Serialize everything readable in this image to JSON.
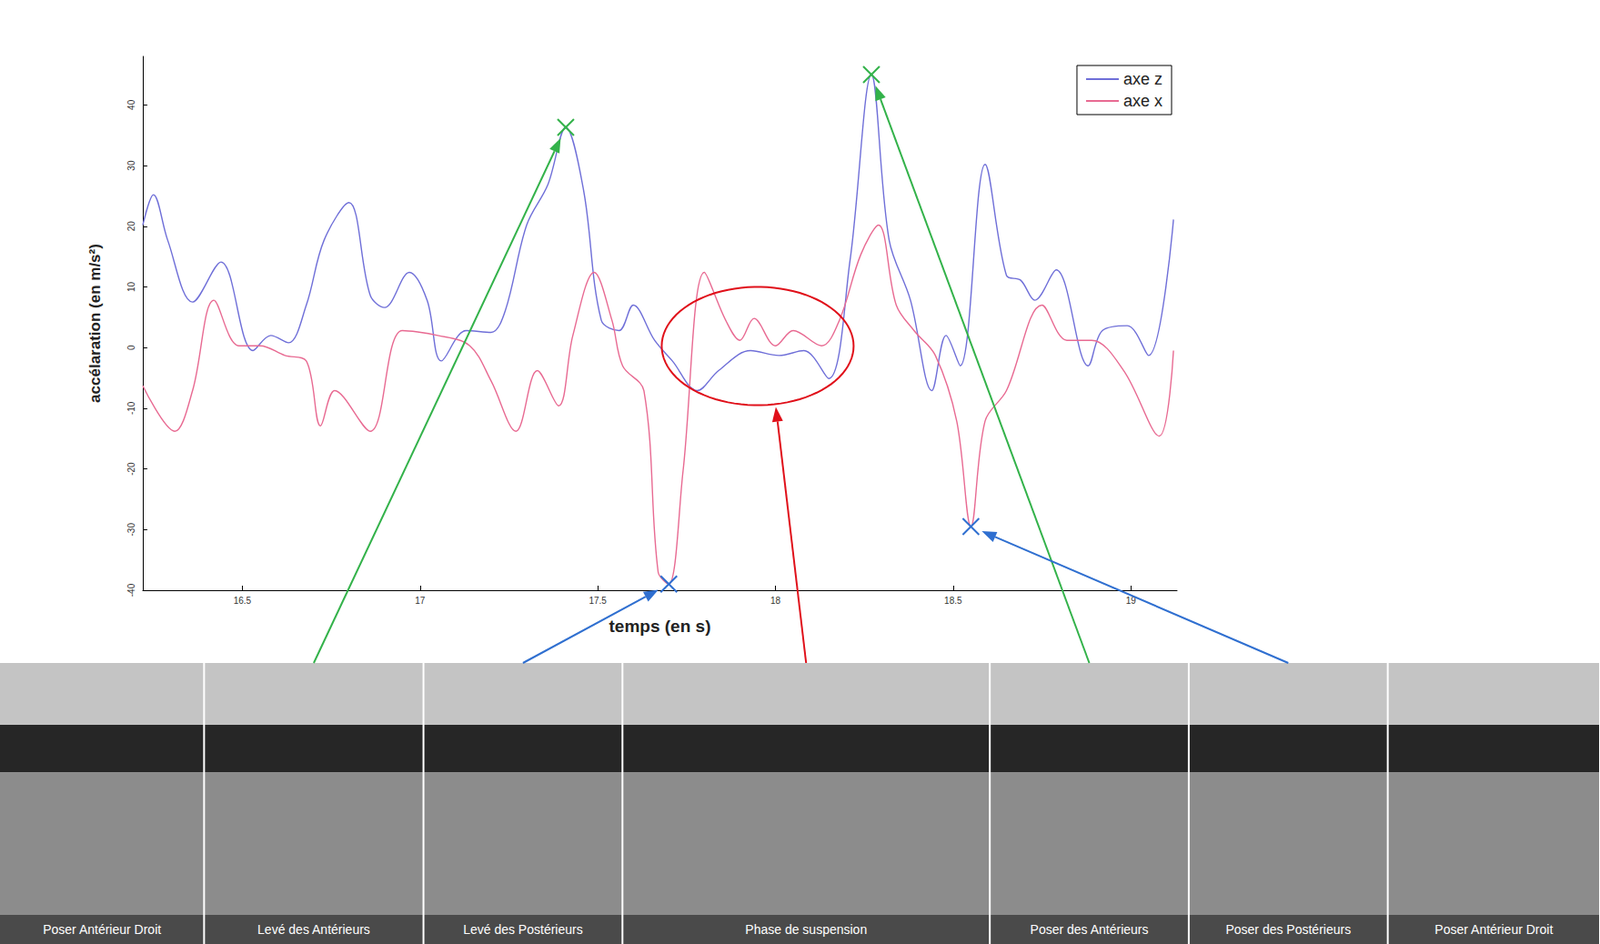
{
  "chart_data": {
    "type": "line",
    "xlabel": "temps (en s)",
    "ylabel": "accélaration (en m/s²)",
    "xlim": [
      16.22,
      19.13
    ],
    "xticks": [
      16.5,
      17,
      17.5,
      18,
      18.5,
      19
    ],
    "ylim": [
      -40,
      48
    ],
    "yticks": [
      -40,
      -30,
      -20,
      -10,
      0,
      10,
      20,
      30,
      40
    ],
    "grid": false,
    "legend": "upper right",
    "series": [
      {
        "name": "axe z",
        "color": "#6f6fd8",
        "x": [
          16.22,
          16.25,
          16.29,
          16.36,
          16.44,
          16.53,
          16.58,
          16.63,
          16.68,
          16.73,
          16.8,
          16.86,
          16.9,
          16.97,
          17.02,
          17.06,
          17.13,
          17.2,
          17.24,
          17.3,
          17.36,
          17.41,
          17.46,
          17.51,
          17.56,
          17.6,
          17.66,
          17.71,
          17.78,
          17.84,
          17.93,
          18.01,
          18.08,
          18.15,
          18.21,
          18.27,
          18.32,
          18.38,
          18.44,
          18.48,
          18.52,
          18.59,
          18.65,
          18.69,
          18.73,
          18.79,
          18.88,
          18.92,
          18.99,
          19.05,
          19.12
        ],
        "values": [
          20.2,
          25.2,
          17.7,
          7.5,
          14.1,
          -0.5,
          2.0,
          0.8,
          7.0,
          17.7,
          23.9,
          8.6,
          6.6,
          12.4,
          7.8,
          -2.2,
          2.8,
          2.5,
          6.1,
          20.2,
          26.9,
          36.3,
          26.0,
          4.5,
          2.8,
          7.0,
          1.2,
          -2.2,
          -7.1,
          -3.8,
          -0.5,
          -1.3,
          -0.5,
          -5.1,
          14.4,
          45.0,
          17.7,
          7.8,
          -7.1,
          2.0,
          -3.0,
          30.2,
          11.9,
          11.1,
          7.8,
          12.8,
          -3.0,
          2.8,
          3.6,
          -1.3,
          21.1
        ]
      },
      {
        "name": "axe x",
        "color": "#e86a92",
        "x": [
          16.22,
          16.31,
          16.36,
          16.42,
          16.49,
          16.55,
          16.62,
          16.68,
          16.72,
          16.76,
          16.86,
          16.95,
          17.05,
          17.14,
          17.2,
          17.27,
          17.33,
          17.39,
          17.43,
          17.49,
          17.54,
          17.57,
          17.63,
          17.67,
          17.7,
          17.74,
          17.8,
          17.86,
          17.9,
          17.94,
          18.0,
          18.05,
          18.13,
          18.18,
          18.24,
          18.29,
          18.34,
          18.39,
          18.45,
          18.51,
          18.55,
          18.59,
          18.65,
          18.75,
          18.82,
          18.89,
          18.98,
          19.08,
          19.12
        ],
        "values": [
          -6.3,
          -13.8,
          -7.1,
          7.8,
          0.3,
          0.3,
          -1.3,
          -2.2,
          -12.9,
          -7.1,
          -13.8,
          2.8,
          2.0,
          0.3,
          -5.5,
          -13.8,
          -3.8,
          -9.6,
          2.0,
          12.4,
          4.5,
          -3.0,
          -7.1,
          -37.0,
          -39.0,
          -20.4,
          12.4,
          4.5,
          1.2,
          4.8,
          0.3,
          2.8,
          0.3,
          4.5,
          15.3,
          20.2,
          7.0,
          2.8,
          -1.3,
          -12.1,
          -29.5,
          -12.1,
          -7.1,
          7.0,
          1.2,
          1.2,
          -3.8,
          -14.6,
          -0.5
        ]
      }
    ],
    "annotations": [
      {
        "x": 17.41,
        "y": 36.3,
        "color": "#33b24a",
        "marker": "x",
        "label": "Levé des Antérieurs"
      },
      {
        "x": 17.7,
        "y": -39.0,
        "color": "#2f6fd0",
        "marker": "x",
        "label": "Levé des Postérieurs"
      },
      {
        "x": 18.27,
        "y": 45.0,
        "color": "#33b24a",
        "marker": "x",
        "label": "Poser des Antérieurs"
      },
      {
        "x": 18.55,
        "y": -29.5,
        "color": "#2f6fd0",
        "marker": "x",
        "label": "Poser des Postérieurs"
      }
    ],
    "highlight": {
      "x": [
        17.68,
        18.22
      ],
      "y": [
        -9.5,
        10.0
      ],
      "color": "#e0101a",
      "label": "Phase de suspension"
    },
    "photos": [
      "Poser Antérieur Droit",
      "Levé des Antérieurs",
      "Levé des Postérieurs",
      "Phase de suspension",
      "Poser des Antérieurs",
      "Poser des Postérieurs",
      "Poser Antérieur Droit"
    ]
  }
}
